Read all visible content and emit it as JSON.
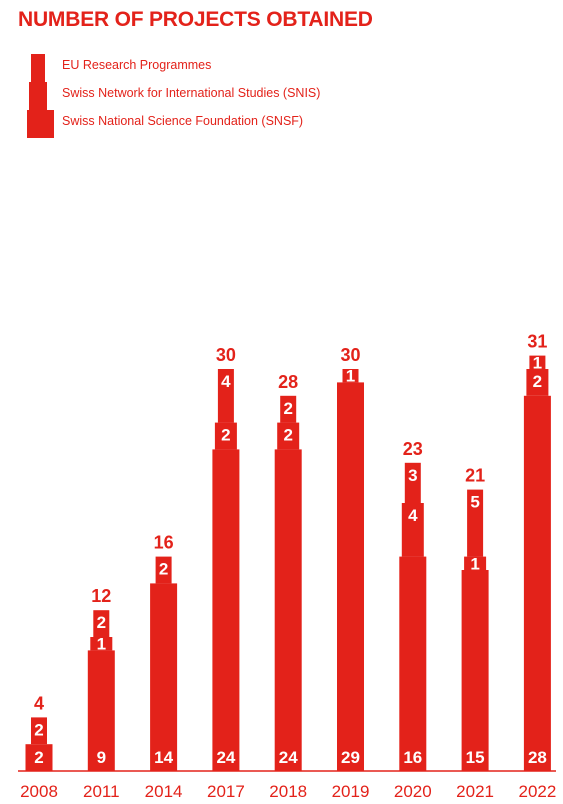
{
  "title": "NUMBER OF PROJECTS OBTAINED",
  "colors": {
    "accent": "#e3221a",
    "inner_text": "#ffffff"
  },
  "legend": [
    {
      "label": "EU Research Programmes"
    },
    {
      "label": "Swiss Network for International Studies (SNIS)"
    },
    {
      "label": "Swiss National Science Foundation (SNSF)"
    }
  ],
  "chart_data": {
    "type": "bar",
    "stacked": true,
    "categories": [
      "2008",
      "2011",
      "2014",
      "2017",
      "2018",
      "2019",
      "2020",
      "2021",
      "2022"
    ],
    "series": [
      {
        "name": "Swiss National Science Foundation (SNSF)",
        "values": [
          2,
          9,
          14,
          24,
          24,
          29,
          16,
          15,
          28
        ]
      },
      {
        "name": "Swiss Network for International Studies (SNIS)",
        "values": [
          0,
          1,
          0,
          2,
          2,
          0,
          4,
          1,
          2
        ]
      },
      {
        "name": "EU Research Programmes",
        "values": [
          2,
          2,
          2,
          4,
          2,
          1,
          3,
          5,
          1
        ]
      }
    ],
    "totals": [
      4,
      12,
      16,
      30,
      28,
      30,
      23,
      21,
      31
    ],
    "ylim": [
      0,
      31
    ],
    "grid": false,
    "legend_position": "top-left"
  }
}
